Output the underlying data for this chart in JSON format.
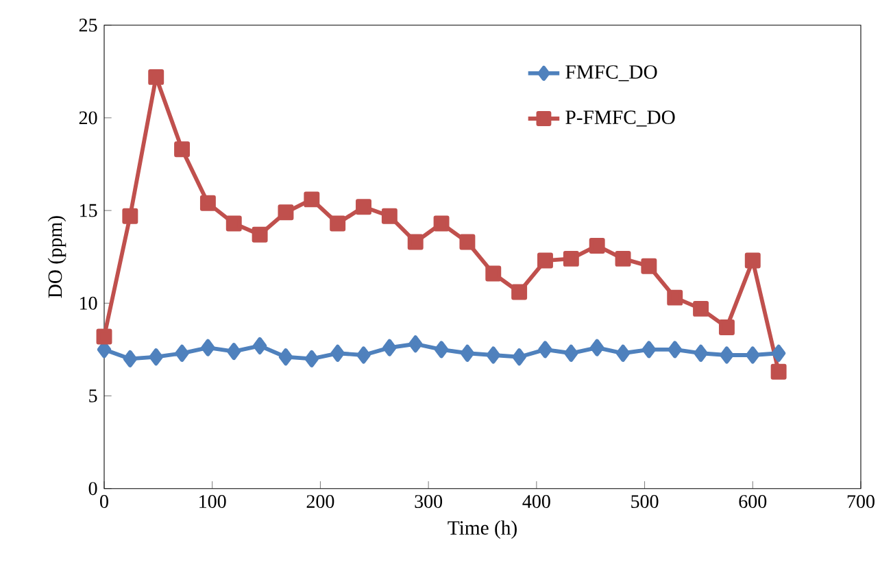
{
  "chart_data": {
    "type": "line",
    "xlabel": "Time (h)",
    "ylabel": "DO (ppm)",
    "x": [
      0,
      24,
      48,
      72,
      96,
      120,
      144,
      168,
      192,
      216,
      240,
      264,
      288,
      312,
      336,
      360,
      384,
      408,
      432,
      456,
      480,
      504,
      528,
      552,
      576,
      600,
      624
    ],
    "series": [
      {
        "name": "FMFC_DO",
        "color": "#4f81bd",
        "marker": "diamond",
        "values": [
          7.5,
          7.0,
          7.1,
          7.3,
          7.6,
          7.4,
          7.7,
          7.1,
          7.0,
          7.3,
          7.2,
          7.6,
          7.8,
          7.5,
          7.3,
          7.2,
          7.1,
          7.5,
          7.3,
          7.6,
          7.3,
          7.5,
          7.5,
          7.3,
          7.2,
          7.2,
          7.3
        ]
      },
      {
        "name": "P-FMFC_DO",
        "color": "#c0504d",
        "marker": "square",
        "values": [
          8.2,
          14.7,
          22.2,
          18.3,
          15.4,
          14.3,
          13.7,
          14.9,
          15.6,
          14.3,
          15.2,
          14.7,
          13.3,
          14.3,
          13.3,
          11.6,
          10.6,
          12.3,
          12.4,
          13.1,
          12.4,
          12.0,
          10.3,
          9.7,
          8.7,
          12.3,
          6.3
        ]
      }
    ],
    "xlim": [
      0,
      700
    ],
    "xticks": [
      0,
      100,
      200,
      300,
      400,
      500,
      600,
      700
    ],
    "ylim": [
      0,
      25
    ],
    "yticks": [
      0,
      5,
      10,
      15,
      20,
      25
    ],
    "grid": false,
    "legend": "top right",
    "line_style": "solid"
  }
}
